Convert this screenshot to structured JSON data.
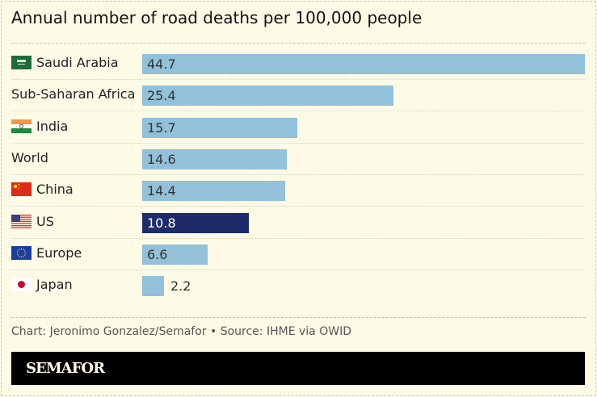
{
  "chart_data": {
    "type": "bar",
    "title": "Annual number of road deaths per 100,000 people",
    "categories": [
      "Saudi Arabia",
      "Sub-Saharan Africa",
      "India",
      "World",
      "China",
      "US",
      "Europe",
      "Japan"
    ],
    "values": [
      44.7,
      25.4,
      15.7,
      14.6,
      14.4,
      10.8,
      6.6,
      2.2
    ],
    "flags": [
      "saudi-arabia-flag",
      null,
      "india-flag",
      null,
      "china-flag",
      "us-flag",
      "eu-flag",
      "japan-flag"
    ],
    "highlight": "US",
    "colors": {
      "default": "#92c1d9",
      "highlight": "#1f2a68"
    },
    "xlim": [
      0,
      44.7
    ],
    "grid": false
  },
  "footer": {
    "credit": "Chart: Jeronimo Gonzalez/Semafor • Source: IHME via OWID"
  },
  "brand": {
    "logo": "SEMAFOR"
  }
}
